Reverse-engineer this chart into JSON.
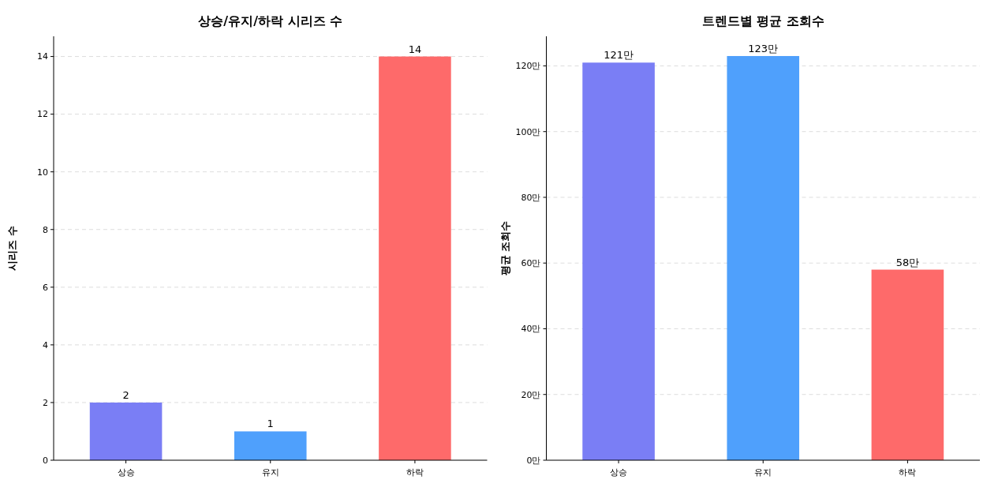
{
  "chart_data": [
    {
      "type": "bar",
      "title": "상승/유지/하락 시리즈 수",
      "ylabel": "시리즈 수",
      "categories": [
        "상승",
        "유지",
        "하락"
      ],
      "values": [
        2,
        1,
        14
      ],
      "colors": [
        "#7a7ef5",
        "#4fa0fc",
        "#fe6a6a"
      ],
      "ylim": [
        0,
        14.7
      ],
      "yticks": [
        0,
        2,
        4,
        6,
        8,
        10,
        12,
        14
      ],
      "grid": "y",
      "data_labels": true
    },
    {
      "type": "bar",
      "title": "트렌드별 평균 조회수",
      "ylabel": "평균 조회수",
      "categories": [
        "상승",
        "유지",
        "하락"
      ],
      "values": [
        121,
        123,
        58
      ],
      "value_labels": [
        "121만",
        "123만",
        "58만"
      ],
      "colors": [
        "#7a7ef5",
        "#4fa0fc",
        "#fe6a6a"
      ],
      "ylim": [
        0,
        129
      ],
      "yticks": [
        {
          "value": 0,
          "label": "0만"
        },
        {
          "value": 20,
          "label": "20만"
        },
        {
          "value": 40,
          "label": "40만"
        },
        {
          "value": 60,
          "label": "60만"
        },
        {
          "value": 80,
          "label": "80만"
        },
        {
          "value": 100,
          "label": "100만"
        },
        {
          "value": 120,
          "label": "120만"
        }
      ],
      "grid": "y"
    }
  ]
}
